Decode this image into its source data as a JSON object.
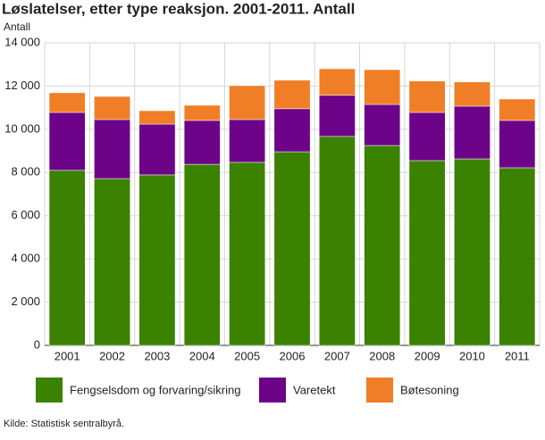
{
  "chart_data": {
    "type": "stacked-bar",
    "title": "Løslatelser, etter type reaksjon. 2001-2011. Antall",
    "y_label": "Antall",
    "source": "Kilde: Statistisk sentralbyrå.",
    "categories": [
      "2001",
      "2002",
      "2003",
      "2004",
      "2005",
      "2006",
      "2007",
      "2008",
      "2009",
      "2010",
      "2011"
    ],
    "series": [
      {
        "name": "Fengselsdom og forvaring/sikring",
        "color": "#3a8200",
        "values": [
          8100,
          7720,
          7890,
          8380,
          8470,
          8960,
          9670,
          9250,
          8550,
          8630,
          8220
        ]
      },
      {
        "name": "Varetekt",
        "color": "#6c0388",
        "values": [
          2680,
          2730,
          2350,
          2030,
          1980,
          1990,
          1900,
          1900,
          2230,
          2440,
          2190
        ]
      },
      {
        "name": "Bøtesoning",
        "color": "#f07e26",
        "values": [
          910,
          1070,
          620,
          700,
          1570,
          1320,
          1230,
          1610,
          1450,
          1120,
          990
        ]
      }
    ],
    "ylim": [
      0,
      14000
    ],
    "yticks": [
      0,
      {
        "value": 2000,
        "label": "2 000"
      },
      {
        "value": 4000,
        "label": "4 000"
      },
      {
        "value": 6000,
        "label": "6 000"
      },
      {
        "value": 8000,
        "label": "8 000"
      },
      {
        "value": 10000,
        "label": "10 000"
      },
      {
        "value": 12000,
        "label": "12 000"
      },
      {
        "value": 14000,
        "label": "14 000"
      }
    ],
    "grid": true,
    "legend": "bottom"
  }
}
